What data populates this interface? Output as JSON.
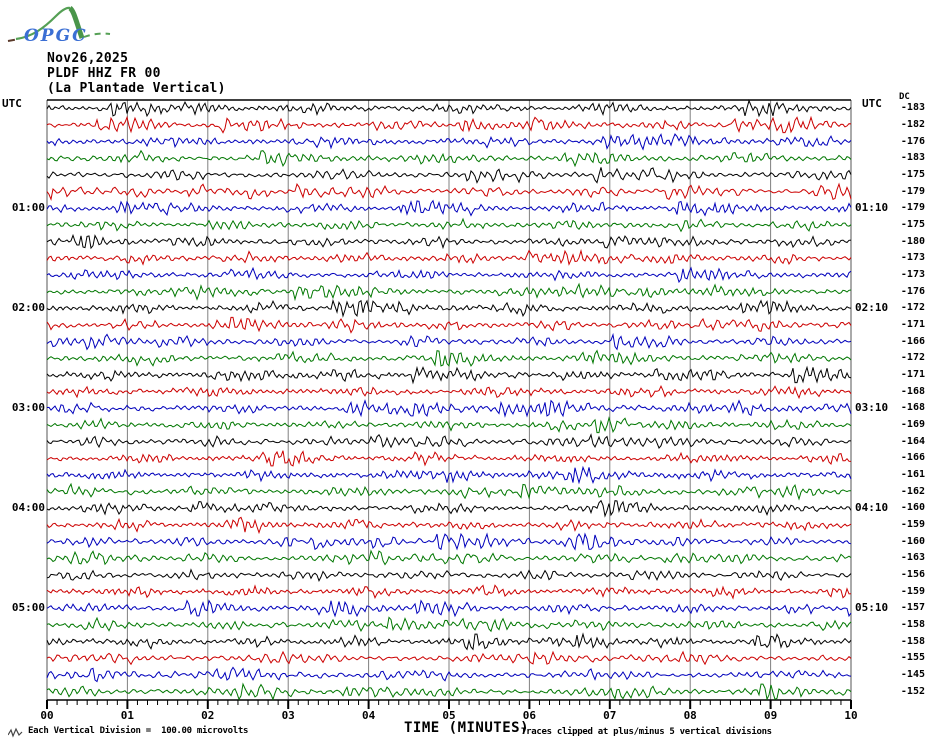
{
  "header": {
    "logo_text": "OPGC",
    "date": "Nov26,2025",
    "station": "PLDF HHZ FR 00",
    "station_name": "(La Plantade Vertical)"
  },
  "axes": {
    "left_header": "UTC",
    "right_header": "UTC",
    "dc_header": "DC",
    "xlabel": "TIME (MINUTES)"
  },
  "footer": {
    "scale_note": "Each Vertical Division =  100.00 microvolts",
    "clip_note": "Traces clipped at plus/minus 5 vertical divisions"
  },
  "colors": {
    "black": "#000000",
    "red": "#cc0000",
    "blue": "#0000bb",
    "green": "#007700",
    "grid": "#808080",
    "border": "#555555",
    "axis": "#000000",
    "logo_green": "#55a055",
    "logo_blue": "#3b6fd4"
  },
  "chart_data": {
    "type": "seismogram",
    "title": "PLDF HHZ FR 00 (La Plantade Vertical)",
    "date": "Nov26,2025",
    "xlabel": "TIME (MINUTES)",
    "x_range_minutes": [
      0,
      10
    ],
    "x_ticks": [
      "00",
      "01",
      "02",
      "03",
      "04",
      "05",
      "06",
      "07",
      "08",
      "09",
      "10"
    ],
    "minutes_per_line": 10,
    "amplitude_note": "Traces clipped at plus/minus 5 vertical divisions",
    "scale_note": "Each Vertical Division = 100.00 microvolts",
    "hour_labels_left": [
      "01:00",
      "02:00",
      "03:00",
      "04:00",
      "05:00"
    ],
    "hour_labels_right": [
      "01:10",
      "02:10",
      "03:10",
      "04:10",
      "05:10"
    ],
    "traces": [
      {
        "utc_start": "00:00",
        "utc_end": "00:10",
        "color": "black",
        "dc": -183
      },
      {
        "utc_start": "00:10",
        "utc_end": "00:20",
        "color": "red",
        "dc": -182
      },
      {
        "utc_start": "00:20",
        "utc_end": "00:30",
        "color": "blue",
        "dc": -176
      },
      {
        "utc_start": "00:30",
        "utc_end": "00:40",
        "color": "green",
        "dc": -183
      },
      {
        "utc_start": "00:40",
        "utc_end": "00:50",
        "color": "black",
        "dc": -175
      },
      {
        "utc_start": "00:50",
        "utc_end": "01:00",
        "color": "red",
        "dc": -179
      },
      {
        "utc_start": "01:00",
        "utc_end": "01:10",
        "color": "blue",
        "dc": -179
      },
      {
        "utc_start": "01:10",
        "utc_end": "01:20",
        "color": "green",
        "dc": -175
      },
      {
        "utc_start": "01:20",
        "utc_end": "01:30",
        "color": "black",
        "dc": -180
      },
      {
        "utc_start": "01:30",
        "utc_end": "01:40",
        "color": "red",
        "dc": -173
      },
      {
        "utc_start": "01:40",
        "utc_end": "01:50",
        "color": "blue",
        "dc": -173
      },
      {
        "utc_start": "01:50",
        "utc_end": "02:00",
        "color": "green",
        "dc": -176
      },
      {
        "utc_start": "02:00",
        "utc_end": "02:10",
        "color": "black",
        "dc": -172
      },
      {
        "utc_start": "02:10",
        "utc_end": "02:20",
        "color": "red",
        "dc": -171
      },
      {
        "utc_start": "02:20",
        "utc_end": "02:30",
        "color": "blue",
        "dc": -166
      },
      {
        "utc_start": "02:30",
        "utc_end": "02:40",
        "color": "green",
        "dc": -172
      },
      {
        "utc_start": "02:40",
        "utc_end": "02:50",
        "color": "black",
        "dc": -171
      },
      {
        "utc_start": "02:50",
        "utc_end": "03:00",
        "color": "red",
        "dc": -168
      },
      {
        "utc_start": "03:00",
        "utc_end": "03:10",
        "color": "blue",
        "dc": -168
      },
      {
        "utc_start": "03:10",
        "utc_end": "03:20",
        "color": "green",
        "dc": -169
      },
      {
        "utc_start": "03:20",
        "utc_end": "03:30",
        "color": "black",
        "dc": -164
      },
      {
        "utc_start": "03:30",
        "utc_end": "03:40",
        "color": "red",
        "dc": -166
      },
      {
        "utc_start": "03:40",
        "utc_end": "03:50",
        "color": "blue",
        "dc": -161
      },
      {
        "utc_start": "03:50",
        "utc_end": "04:00",
        "color": "green",
        "dc": -162
      },
      {
        "utc_start": "04:00",
        "utc_end": "04:10",
        "color": "black",
        "dc": -160
      },
      {
        "utc_start": "04:10",
        "utc_end": "04:20",
        "color": "red",
        "dc": -159
      },
      {
        "utc_start": "04:20",
        "utc_end": "04:30",
        "color": "blue",
        "dc": -160
      },
      {
        "utc_start": "04:30",
        "utc_end": "04:40",
        "color": "green",
        "dc": -163
      },
      {
        "utc_start": "04:40",
        "utc_end": "04:50",
        "color": "black",
        "dc": -156
      },
      {
        "utc_start": "04:50",
        "utc_end": "05:00",
        "color": "red",
        "dc": -159
      },
      {
        "utc_start": "05:00",
        "utc_end": "05:10",
        "color": "blue",
        "dc": -157
      },
      {
        "utc_start": "05:10",
        "utc_end": "05:20",
        "color": "green",
        "dc": -158
      },
      {
        "utc_start": "05:20",
        "utc_end": "05:30",
        "color": "black",
        "dc": -158
      },
      {
        "utc_start": "05:30",
        "utc_end": "05:40",
        "color": "red",
        "dc": -155
      },
      {
        "utc_start": "05:40",
        "utc_end": "05:50",
        "color": "blue",
        "dc": -145
      },
      {
        "utc_start": "05:50",
        "utc_end": "06:00",
        "color": "green",
        "dc": -152
      }
    ]
  }
}
